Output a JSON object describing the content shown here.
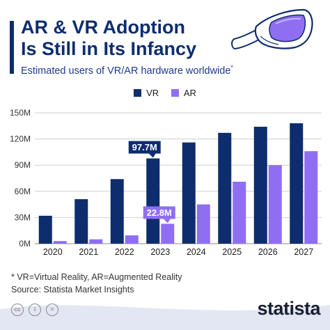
{
  "header": {
    "title_line1": "AR & VR Adoption",
    "title_line2": "Is Still in Its Infancy",
    "subtitle": "Estimated users of VR/AR hardware worldwide",
    "subtitle_mark": "*"
  },
  "colors": {
    "vr": "#0d2d6e",
    "ar": "#8f6ef2",
    "title": "#0d2d6e",
    "grid": "#cfcfcf",
    "footer_wave": "#e3e7f3"
  },
  "icons": {
    "headset": "vr-headset-icon",
    "cc": "creative-commons-icon",
    "by": "attribution-icon",
    "nd": "no-derivatives-icon"
  },
  "chart_data": {
    "type": "bar",
    "categories": [
      "2020",
      "2021",
      "2022",
      "2023",
      "2024",
      "2025",
      "2026",
      "2027"
    ],
    "series": [
      {
        "name": "VR",
        "values": [
          32,
          51,
          74,
          97.7,
          116,
          127,
          134,
          138
        ]
      },
      {
        "name": "AR",
        "values": [
          3,
          5,
          9.5,
          22.8,
          45,
          71,
          90,
          106
        ]
      }
    ],
    "ylim": [
      0,
      150
    ],
    "yticks": [
      0,
      30,
      60,
      90,
      120,
      150
    ],
    "ytick_labels": [
      "0M",
      "30M",
      "60M",
      "90M",
      "120M",
      "150M"
    ],
    "callouts": [
      {
        "series": "VR",
        "category": "2023",
        "label": "97.7M"
      },
      {
        "series": "AR",
        "category": "2023",
        "label": "22.8M"
      }
    ],
    "grid": true,
    "legend_position": "top-center"
  },
  "footer": {
    "note": "* VR=Virtual Reality, AR=Augmented Reality",
    "source": "Source: Statista Market Insights",
    "license_cc": "cc",
    "license_by": "i",
    "license_nd": "=",
    "brand": "statista"
  }
}
